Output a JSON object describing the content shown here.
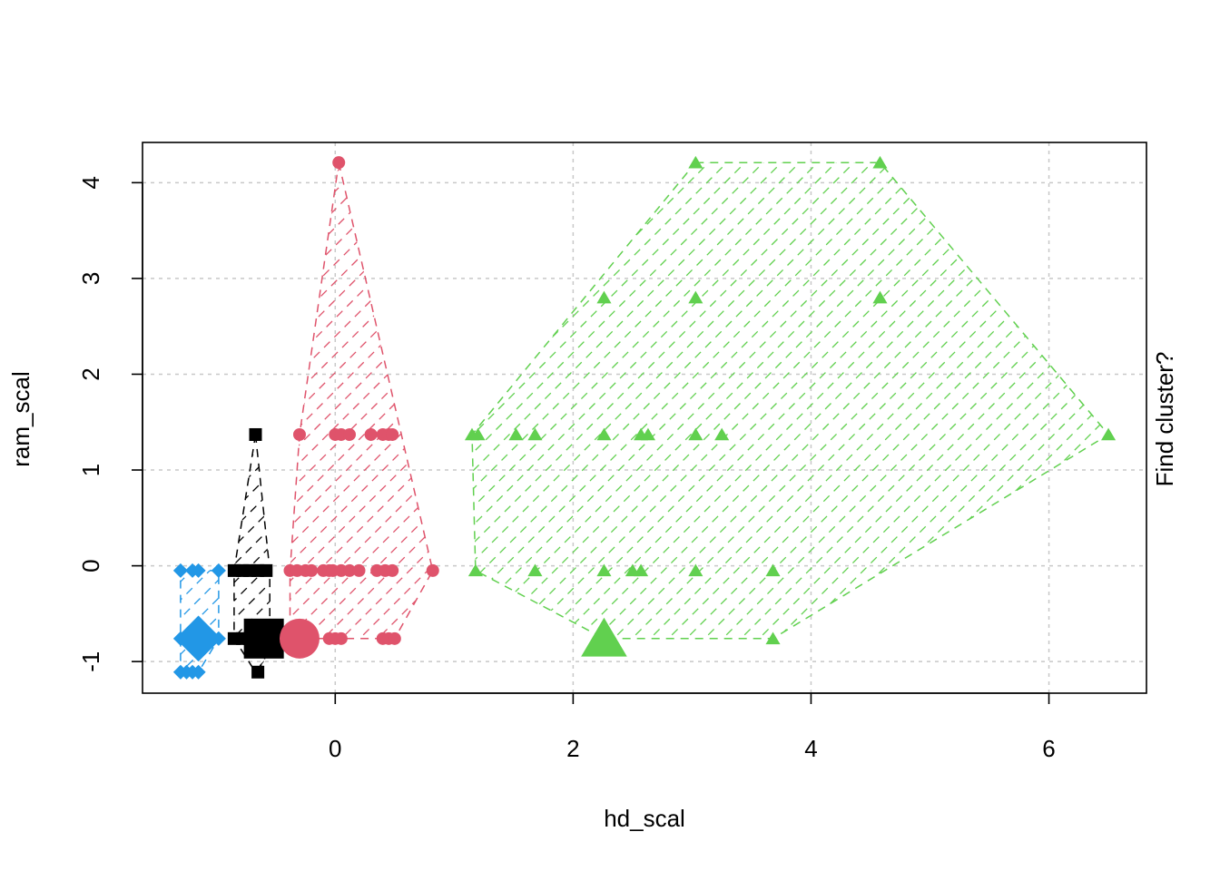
{
  "chart_data": {
    "type": "scatter",
    "xlabel": "hd_scal",
    "ylabel": "ram_scal",
    "right_label": "Find cluster?",
    "xlim": [
      -1.62,
      6.82
    ],
    "ylim": [
      -1.33,
      4.42
    ],
    "x_ticks": [
      0,
      2,
      4,
      6
    ],
    "y_ticks": [
      -1,
      0,
      1,
      2,
      3,
      4
    ],
    "x_tick_labels": [
      "0",
      "2",
      "4",
      "6"
    ],
    "y_tick_labels": [
      "-1",
      "0",
      "1",
      "2",
      "3",
      "4"
    ],
    "grid": true,
    "series": [
      {
        "color": "#000000",
        "marker": "square",
        "points": [
          [
            -0.67,
            1.37
          ],
          [
            -0.85,
            -0.05
          ],
          [
            -0.78,
            -0.05
          ],
          [
            -0.72,
            -0.05
          ],
          [
            -0.65,
            -0.05
          ],
          [
            -0.58,
            -0.05
          ],
          [
            -0.85,
            -0.76
          ],
          [
            -0.78,
            -0.76
          ],
          [
            -0.72,
            -0.76
          ],
          [
            -0.65,
            -0.76
          ],
          [
            -0.65,
            -1.11
          ]
        ],
        "centroid": [
          -0.6,
          -0.76
        ],
        "hull": [
          [
            -0.67,
            1.37
          ],
          [
            -0.55,
            -0.05
          ],
          [
            -0.55,
            -0.76
          ],
          [
            -0.6,
            -1.0
          ],
          [
            -0.67,
            -1.11
          ],
          [
            -0.85,
            -0.76
          ],
          [
            -0.85,
            -0.05
          ]
        ]
      },
      {
        "color": "#DF536B",
        "marker": "circle",
        "points": [
          [
            0.03,
            4.21
          ],
          [
            -0.3,
            1.37
          ],
          [
            0.0,
            1.37
          ],
          [
            0.05,
            1.37
          ],
          [
            0.12,
            1.37
          ],
          [
            0.3,
            1.37
          ],
          [
            0.4,
            1.37
          ],
          [
            0.45,
            1.37
          ],
          [
            0.48,
            1.37
          ],
          [
            -0.38,
            -0.05
          ],
          [
            -0.32,
            -0.05
          ],
          [
            -0.25,
            -0.05
          ],
          [
            -0.2,
            -0.05
          ],
          [
            -0.1,
            -0.05
          ],
          [
            -0.05,
            -0.05
          ],
          [
            -0.02,
            -0.05
          ],
          [
            0.05,
            -0.05
          ],
          [
            0.12,
            -0.05
          ],
          [
            0.2,
            -0.05
          ],
          [
            0.35,
            -0.05
          ],
          [
            0.42,
            -0.05
          ],
          [
            0.48,
            -0.05
          ],
          [
            0.82,
            -0.05
          ],
          [
            -0.05,
            -0.76
          ],
          [
            0.0,
            -0.76
          ],
          [
            0.05,
            -0.76
          ],
          [
            0.4,
            -0.76
          ],
          [
            0.45,
            -0.76
          ],
          [
            0.5,
            -0.76
          ]
        ],
        "centroid": [
          -0.3,
          -0.76
        ],
        "hull": [
          [
            0.03,
            4.21
          ],
          [
            0.82,
            -0.05
          ],
          [
            0.5,
            -0.76
          ],
          [
            -0.38,
            -0.76
          ],
          [
            -0.38,
            -0.05
          ],
          [
            -0.3,
            1.37
          ]
        ]
      },
      {
        "color": "#61D04F",
        "marker": "triangle",
        "points": [
          [
            3.03,
            4.21
          ],
          [
            4.58,
            4.21
          ],
          [
            2.26,
            2.8
          ],
          [
            3.03,
            2.8
          ],
          [
            4.58,
            2.8
          ],
          [
            1.15,
            1.37
          ],
          [
            1.2,
            1.37
          ],
          [
            1.52,
            1.37
          ],
          [
            1.68,
            1.37
          ],
          [
            2.26,
            1.37
          ],
          [
            2.57,
            1.37
          ],
          [
            2.63,
            1.37
          ],
          [
            3.03,
            1.37
          ],
          [
            3.25,
            1.37
          ],
          [
            6.5,
            1.37
          ],
          [
            1.18,
            -0.05
          ],
          [
            1.68,
            -0.05
          ],
          [
            2.26,
            -0.05
          ],
          [
            2.5,
            -0.05
          ],
          [
            2.57,
            -0.05
          ],
          [
            3.03,
            -0.05
          ],
          [
            3.68,
            -0.05
          ],
          [
            3.68,
            -0.76
          ]
        ],
        "centroid": [
          2.26,
          -0.76
        ],
        "hull": [
          [
            3.03,
            4.21
          ],
          [
            4.58,
            4.21
          ],
          [
            6.5,
            1.37
          ],
          [
            3.68,
            -0.76
          ],
          [
            2.26,
            -0.76
          ],
          [
            1.18,
            -0.05
          ],
          [
            1.15,
            1.37
          ]
        ]
      },
      {
        "color": "#2297E6",
        "marker": "diamond",
        "points": [
          [
            -1.3,
            -0.05
          ],
          [
            -1.2,
            -0.05
          ],
          [
            -1.15,
            -0.05
          ],
          [
            -0.98,
            -0.05
          ],
          [
            -1.3,
            -0.76
          ],
          [
            -0.98,
            -0.76
          ],
          [
            -1.3,
            -1.11
          ],
          [
            -1.25,
            -1.11
          ],
          [
            -1.2,
            -1.11
          ],
          [
            -1.15,
            -1.11
          ]
        ],
        "centroid": [
          -1.15,
          -0.76
        ],
        "hull": [
          [
            -1.3,
            -0.05
          ],
          [
            -0.98,
            -0.05
          ],
          [
            -0.98,
            -0.76
          ],
          [
            -1.15,
            -1.11
          ],
          [
            -1.3,
            -1.11
          ]
        ]
      }
    ]
  }
}
